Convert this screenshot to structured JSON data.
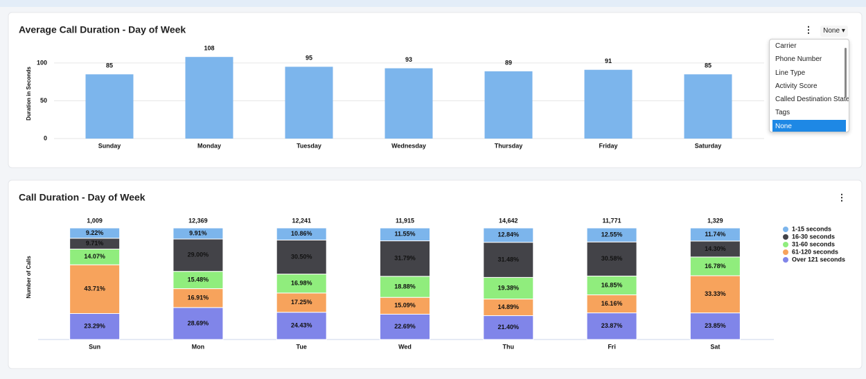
{
  "chart_data": [
    {
      "type": "bar",
      "title": "Average Call Duration - Day of Week",
      "y_label": "Duration in Seconds",
      "categories": [
        "Sunday",
        "Monday",
        "Tuesday",
        "Wednesday",
        "Thursday",
        "Friday",
        "Saturday"
      ],
      "values": [
        85,
        108,
        95,
        93,
        89,
        91,
        85
      ],
      "color": "#7cb5ec",
      "ylim": [
        0,
        110
      ],
      "yticks": [
        0,
        50,
        100
      ],
      "grid": true
    },
    {
      "type": "stacked_bar",
      "title": "Call Duration - Day of Week",
      "y_label": "Number of Calls",
      "categories": [
        "Sun",
        "Mon",
        "Tue",
        "Wed",
        "Thu",
        "Fri",
        "Sat"
      ],
      "totals": {
        "values": [
          1009,
          12369,
          12241,
          11915,
          14642,
          11771,
          1329
        ],
        "value_labels": [
          "1,009",
          "12,369",
          "12,241",
          "11,915",
          "14,642",
          "11,771",
          "1,329"
        ]
      },
      "ylim": [
        0,
        100
      ],
      "legend": "right",
      "series": [
        {
          "name": "1-15 seconds",
          "color": "#7cb5ec",
          "values": [
            9.22,
            9.91,
            10.86,
            11.55,
            12.84,
            12.55,
            11.74
          ],
          "value_labels": [
            "9.22%",
            "9.91%",
            "10.86%",
            "11.55%",
            "12.84%",
            "12.55%",
            "11.74%"
          ]
        },
        {
          "name": "16-30 seconds",
          "color": "#434348",
          "values": [
            9.71,
            29.0,
            30.5,
            31.79,
            31.48,
            30.58,
            14.3
          ],
          "value_labels": [
            "9.71%",
            "29.00%",
            "30.50%",
            "31.79%",
            "31.48%",
            "30.58%",
            "14.30%"
          ]
        },
        {
          "name": "31-60 seconds",
          "color": "#90ed7d",
          "values": [
            14.07,
            15.48,
            16.98,
            18.88,
            19.38,
            16.85,
            16.78
          ],
          "value_labels": [
            "14.07%",
            "15.48%",
            "16.98%",
            "18.88%",
            "19.38%",
            "16.85%",
            "16.78%"
          ]
        },
        {
          "name": "61-120 seconds",
          "color": "#f7a35c",
          "values": [
            43.71,
            16.91,
            17.25,
            15.09,
            14.89,
            16.16,
            33.33
          ],
          "value_labels": [
            "43.71%",
            "16.91%",
            "17.25%",
            "15.09%",
            "14.89%",
            "16.16%",
            "33.33%"
          ]
        },
        {
          "name": "Over 121 seconds",
          "color": "#8085e9",
          "values": [
            23.29,
            28.69,
            24.43,
            22.69,
            21.4,
            23.87,
            23.85
          ],
          "value_labels": [
            "23.29%",
            "28.69%",
            "24.43%",
            "22.69%",
            "21.40%",
            "23.87%",
            "23.85%"
          ]
        }
      ]
    }
  ],
  "dropdown": {
    "selected": "None",
    "options": [
      "Carrier",
      "Phone Number",
      "Line Type",
      "Activity Score",
      "Called Destination State",
      "Tags",
      "None"
    ]
  }
}
